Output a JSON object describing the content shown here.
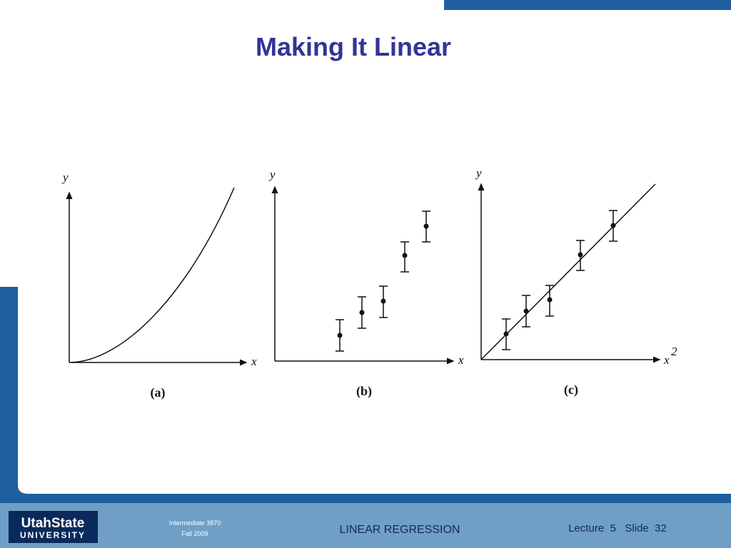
{
  "header": {
    "title": "Making It Linear"
  },
  "figure": {
    "panels": [
      {
        "y_label": "y",
        "x_label": "x",
        "caption": "(a)"
      },
      {
        "y_label": "y",
        "x_label": "x",
        "caption": "(b)"
      },
      {
        "y_label": "y",
        "x_label": "x",
        "x_label_exponent": "2",
        "caption": "(c)"
      }
    ]
  },
  "footer": {
    "logo_top": "UtahState",
    "logo_bottom": "UNIVERSITY",
    "course": "Intermediate  3870",
    "term": "Fall 2009",
    "topic": "LINEAR REGRESSION",
    "slide_info": "Lecture  5   Slide  32"
  }
}
